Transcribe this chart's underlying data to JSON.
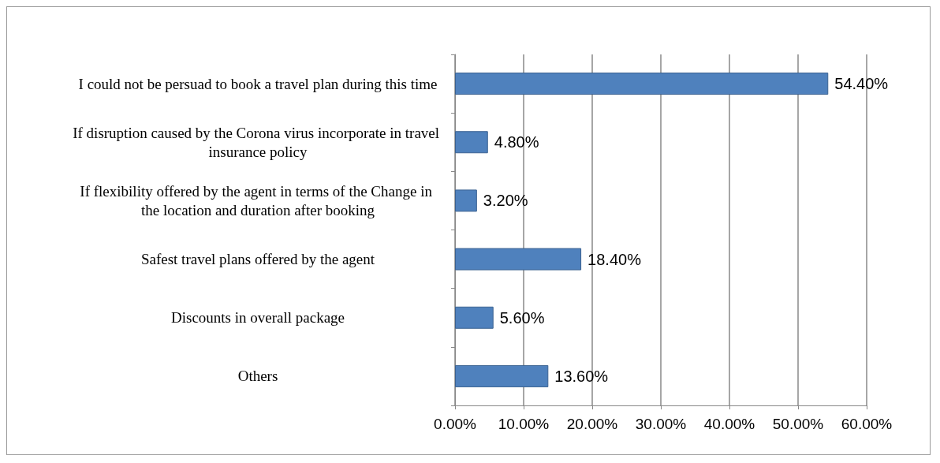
{
  "chart_data": {
    "type": "bar",
    "orientation": "horizontal",
    "categories": [
      "I could not be persuad to book a travel plan during this time",
      "If disruption caused by the Corona virus incorporate in travel insurance policy",
      "If flexibility offered by the agent in terms of the Change in the location and duration after booking",
      "Safest travel plans offered by the agent",
      "Discounts in overall package",
      "Others"
    ],
    "values": [
      54.4,
      4.8,
      3.2,
      18.4,
      5.6,
      13.6
    ],
    "value_labels": [
      "54.40%",
      "4.80%",
      "3.20%",
      "18.40%",
      "5.60%",
      "13.60%"
    ],
    "color": "#4f81bd",
    "xlim": [
      0,
      60
    ],
    "xticks": [
      {
        "value": 0,
        "label": "0.00%"
      },
      {
        "value": 10,
        "label": "10.00%"
      },
      {
        "value": 20,
        "label": "20.00%"
      },
      {
        "value": 30,
        "label": "30.00%"
      },
      {
        "value": 40,
        "label": "40.00%"
      },
      {
        "value": 50,
        "label": "50.00%"
      },
      {
        "value": 60,
        "label": "60.00%"
      }
    ],
    "grid": "x"
  }
}
